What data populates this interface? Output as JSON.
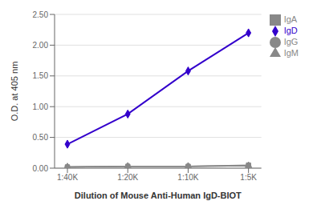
{
  "chart_data": {
    "type": "line",
    "categories": [
      "1:40K",
      "1:20K",
      "1:10K",
      "1:5K"
    ],
    "series": [
      {
        "name": "IgD",
        "color": "#3300cc",
        "marker": "diamond",
        "values": [
          0.39,
          0.88,
          1.58,
          2.2
        ]
      },
      {
        "name": "IgG",
        "color": "#888888",
        "marker": "circle",
        "values": [
          0.02,
          0.03,
          0.03,
          0.04
        ]
      },
      {
        "name": "IgM",
        "color": "#888888",
        "marker": "triangle",
        "values": [
          0.02,
          0.03,
          0.03,
          0.04
        ]
      },
      {
        "name": "IgA",
        "color": "#888888",
        "marker": "square",
        "values": [
          0.02,
          0.03,
          0.03,
          0.05
        ]
      }
    ],
    "xlabel": "Dilution of Mouse Anti-Human IgD-BIOT",
    "ylabel": "O.D. at 405 nm",
    "ylim": [
      0.0,
      2.5
    ],
    "yticks": [
      {
        "value": 0,
        "label": "0.00"
      },
      {
        "value": 0.5,
        "label": "0.50"
      },
      {
        "value": 1,
        "label": "1.00"
      },
      {
        "value": 1.5,
        "label": "1.50"
      },
      {
        "value": 2,
        "label": "2.00"
      },
      {
        "value": 2.5,
        "label": "2.50"
      }
    ],
    "grid": true,
    "legend": "right"
  }
}
